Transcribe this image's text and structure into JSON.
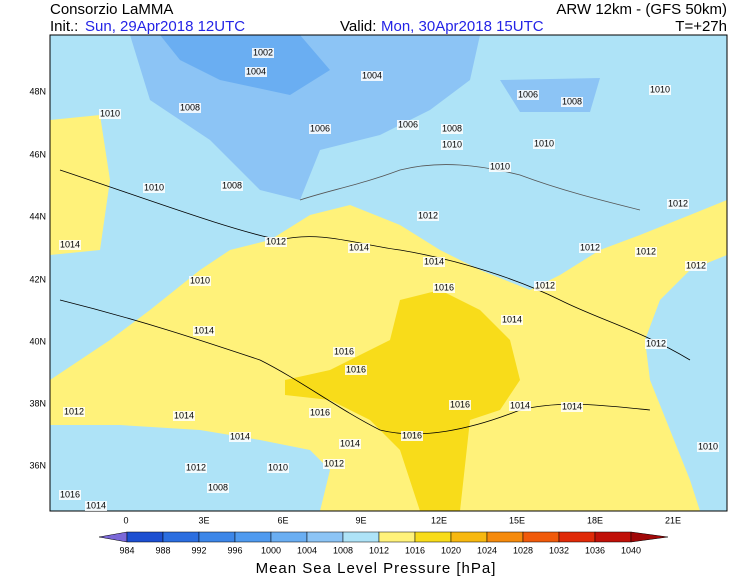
{
  "header": {
    "title": "Consorzio LaMMA",
    "model": "ARW 12km - (GFS 50km)",
    "init_label": "Init.:",
    "init": "Sun, 29Apr2018 12UTC",
    "valid_label": "Valid:",
    "valid": "Mon, 30Apr2018 15UTC",
    "lead": "T=+27h"
  },
  "map": {
    "lat_labels": [
      "48N",
      "46N",
      "44N",
      "42N",
      "40N",
      "38N",
      "36N"
    ],
    "lon_labels": [
      "0",
      "3E",
      "6E",
      "9E",
      "12E",
      "15E",
      "18E",
      "21E"
    ],
    "isobar_labels": [
      "1002",
      "1004",
      "1004",
      "1006",
      "1008",
      "1010",
      "1008",
      "1010",
      "1006",
      "1006",
      "1008",
      "1010",
      "1010",
      "1010",
      "1008",
      "1010",
      "1012",
      "1012",
      "1012",
      "1014",
      "1014",
      "1012",
      "1012",
      "1014",
      "1012",
      "1010",
      "1016",
      "1012",
      "1014",
      "1014",
      "1016",
      "1012",
      "1016",
      "1016",
      "1014",
      "1014",
      "1012",
      "1014",
      "1016",
      "1014",
      "1016",
      "1014",
      "1010",
      "1012",
      "1010",
      "1012",
      "1008",
      "1016",
      "1014"
    ]
  },
  "colorbar": {
    "labels": [
      984,
      988,
      992,
      996,
      1000,
      1004,
      1008,
      1012,
      1016,
      1020,
      1024,
      1028,
      1032,
      1036,
      1040
    ],
    "colors": [
      "#7b68d8",
      "#1c4fd1",
      "#2b6ee0",
      "#3c86e8",
      "#4f9aef",
      "#6aaef2",
      "#8cc4f5",
      "#aee3f7",
      "#fff27a",
      "#f8dc1a",
      "#f7b810",
      "#f58a0c",
      "#f05a0a",
      "#e02a08",
      "#c01008",
      "#a00808"
    ],
    "title": "Mean Sea Level Pressure [hPa]"
  }
}
